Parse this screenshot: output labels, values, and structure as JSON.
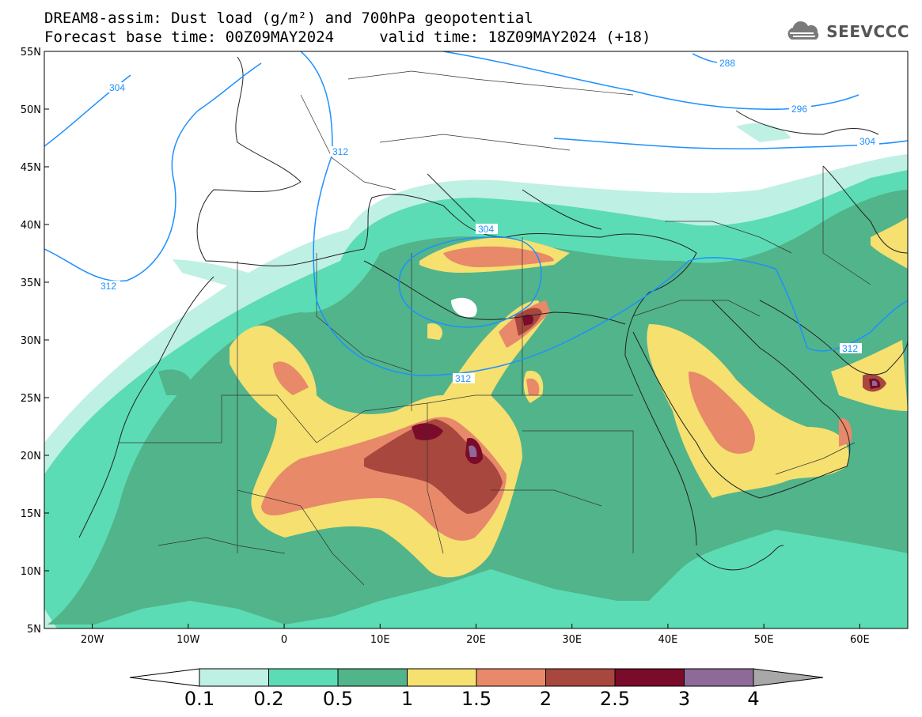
{
  "header": {
    "title_line1": "DREAM8-assim: Dust load (g/m²) and 700hPa geopotential",
    "title_line2": "Forecast base time: 00Z09MAY2024     valid time: 18Z09MAY2024 (+18)",
    "logo_text": "SEEVCCC"
  },
  "map": {
    "variable": "Dust load",
    "units": "g/m²",
    "contour_field": "700hPa geopotential",
    "lon_range": [
      -25,
      65
    ],
    "lat_range": [
      5,
      55
    ],
    "lat_ticks": [
      "5N",
      "10N",
      "15N",
      "20N",
      "25N",
      "30N",
      "35N",
      "40N",
      "45N",
      "50N",
      "55N"
    ],
    "lon_ticks": [
      "20W",
      "10W",
      "0",
      "10E",
      "20E",
      "30E",
      "40E",
      "50E",
      "60E"
    ],
    "contour_labels": [
      "304",
      "312",
      "288",
      "296",
      "304",
      "304",
      "312",
      "312",
      "312"
    ]
  },
  "colorbar": {
    "levels": [
      "0.1",
      "0.2",
      "0.5",
      "1",
      "1.5",
      "2",
      "2.5",
      "3",
      "4"
    ],
    "colors": [
      "#bff0e4",
      "#5cdcb4",
      "#52b48a",
      "#f5e070",
      "#e8896a",
      "#a8473d",
      "#7a0b2a",
      "#8e6a9a"
    ],
    "under_color": "#ffffff",
    "over_color": "#a8a8a8"
  },
  "colors": {
    "contour_line": "#1e90ff",
    "border_line": "#222222"
  }
}
